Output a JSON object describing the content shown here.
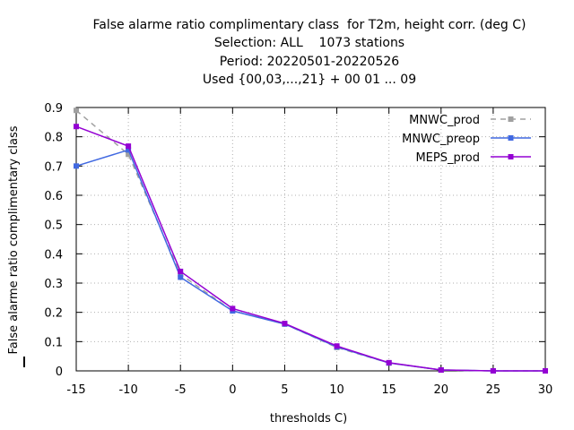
{
  "chart_data": {
    "type": "line",
    "title_lines": [
      "False alarme ratio complimentary class  for T2m, height corr. (deg C)",
      "Selection: ALL    1073 stations",
      "Period: 20220501-20220526",
      "Used {00,03,...,21} + 00 01 ... 09"
    ],
    "xlabel": "thresholds C)",
    "ylabel": "False alarme ratio complimentary class",
    "x": [
      -15,
      -10,
      -5,
      0,
      5,
      10,
      15,
      20,
      25,
      30
    ],
    "xlim": [
      -15,
      30
    ],
    "ylim": [
      0,
      0.9
    ],
    "xticks": [
      "-15",
      "-10",
      "-5",
      "0",
      "5",
      "10",
      "15",
      "20",
      "25",
      "30"
    ],
    "yticks": [
      "0",
      "0.1",
      "0.2",
      "0.3",
      "0.4",
      "0.5",
      "0.6",
      "0.7",
      "0.8",
      "0.9"
    ],
    "grid": true,
    "legend_position": "top-right",
    "series": [
      {
        "name": "MNWC_prod",
        "color": "#a0a0a0",
        "dashed": true,
        "values": [
          0.89,
          0.74,
          0.33,
          0.205,
          0.16,
          0.08,
          0.027,
          0.003,
          0.0,
          0.0
        ]
      },
      {
        "name": "MNWC_preop",
        "color": "#4169e1",
        "dashed": false,
        "values": [
          0.7,
          0.755,
          0.32,
          0.205,
          0.16,
          0.082,
          0.027,
          0.003,
          0.0,
          0.0
        ]
      },
      {
        "name": "MEPS_prod",
        "color": "#9400d3",
        "dashed": false,
        "values": [
          0.835,
          0.768,
          0.34,
          0.213,
          0.162,
          0.085,
          0.028,
          0.003,
          0.0,
          0.0
        ]
      }
    ]
  }
}
